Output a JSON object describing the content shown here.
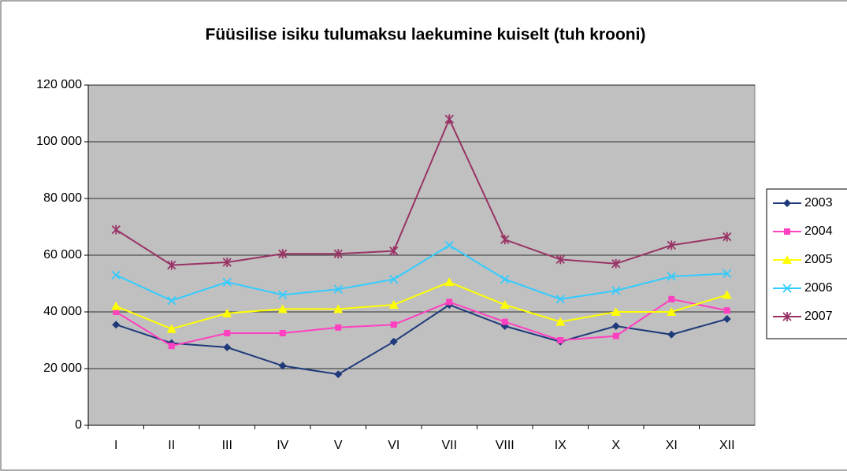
{
  "chart_data": {
    "type": "line",
    "title": "Füüsilise isiku tulumaksu laekumine kuiselt (tuh krooni)",
    "categories": [
      "I",
      "II",
      "III",
      "IV",
      "V",
      "VI",
      "VII",
      "VIII",
      "IX",
      "X",
      "XI",
      "XII"
    ],
    "series": [
      {
        "name": "2003",
        "color": "#1f3a7a",
        "marker": "diamond",
        "values": [
          35500,
          29000,
          27500,
          21000,
          18000,
          29500,
          42500,
          35000,
          29500,
          35000,
          32000,
          37500
        ]
      },
      {
        "name": "2004",
        "color": "#ff40c0",
        "marker": "square",
        "values": [
          40000,
          28000,
          32500,
          32500,
          34500,
          35500,
          43500,
          36500,
          30000,
          31500,
          44500,
          40500
        ]
      },
      {
        "name": "2005",
        "color": "#ffff00",
        "marker": "triangle",
        "values": [
          42000,
          34000,
          39500,
          41000,
          41000,
          42500,
          50500,
          42500,
          36500,
          40000,
          40000,
          46000
        ]
      },
      {
        "name": "2006",
        "color": "#33ccff",
        "marker": "x",
        "values": [
          53000,
          44000,
          50500,
          46000,
          48000,
          51500,
          63500,
          51500,
          44500,
          47500,
          52500,
          53500
        ]
      },
      {
        "name": "2007",
        "color": "#993366",
        "marker": "star",
        "values": [
          69000,
          56500,
          57500,
          60500,
          60500,
          61500,
          108000,
          65500,
          58500,
          57000,
          63500,
          66500
        ]
      }
    ],
    "ylim": [
      0,
      120000
    ],
    "yticks": [
      {
        "value": 0,
        "label": "0"
      },
      {
        "value": 20000,
        "label": "20 000"
      },
      {
        "value": 40000,
        "label": "40 000"
      },
      {
        "value": 60000,
        "label": "60 000"
      },
      {
        "value": 80000,
        "label": "80 000"
      },
      {
        "value": 100000,
        "label": "100 000"
      },
      {
        "value": 120000,
        "label": "120 000"
      }
    ],
    "grid": true,
    "legend": "right",
    "plot_background": "#c0c0c0"
  }
}
